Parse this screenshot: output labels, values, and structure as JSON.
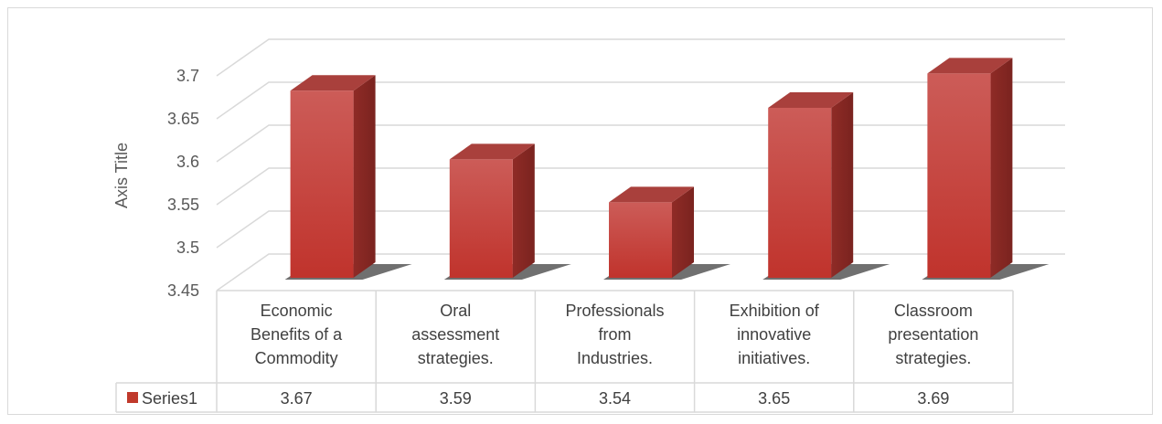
{
  "chart_data": {
    "type": "bar",
    "categories": [
      [
        "Economic",
        "Benefits of a",
        "Commodity"
      ],
      [
        "Oral",
        "assessment",
        "strategies."
      ],
      [
        "Professionals",
        "from",
        "Industries."
      ],
      [
        "Exhibition of",
        "innovative",
        "initiatives."
      ],
      [
        "Classroom",
        "presentation",
        "strategies."
      ]
    ],
    "series": [
      {
        "name": "Series1",
        "values": [
          3.67,
          3.59,
          3.54,
          3.65,
          3.69
        ],
        "labels": [
          "3.67",
          "3.59",
          "3.54",
          "3.65",
          "3.69"
        ]
      }
    ],
    "ylabel": "Axis Title",
    "ylim": [
      3.45,
      3.7
    ],
    "yticks": [
      "3.45",
      "3.5",
      "3.55",
      "3.6",
      "3.65",
      "3.7"
    ],
    "grid": true,
    "legend": "data-table",
    "bar_color": "#c0392b",
    "bar_top_color": "#a9403c",
    "bar_side_color": "#8b2a26"
  }
}
